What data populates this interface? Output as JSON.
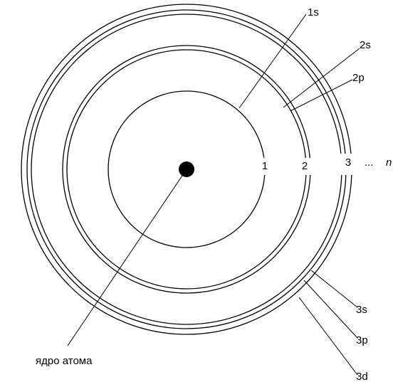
{
  "shells": [
    {
      "label": "1"
    },
    {
      "label": "2"
    },
    {
      "label": "3"
    },
    {
      "label": "..."
    },
    {
      "label": "n"
    }
  ],
  "orbitals": [
    {
      "label": "1s"
    },
    {
      "label": "2s"
    },
    {
      "label": "2p"
    },
    {
      "label": "3s"
    },
    {
      "label": "3p"
    },
    {
      "label": "3d"
    }
  ],
  "nucleus": {
    "label": "ядро атома"
  }
}
